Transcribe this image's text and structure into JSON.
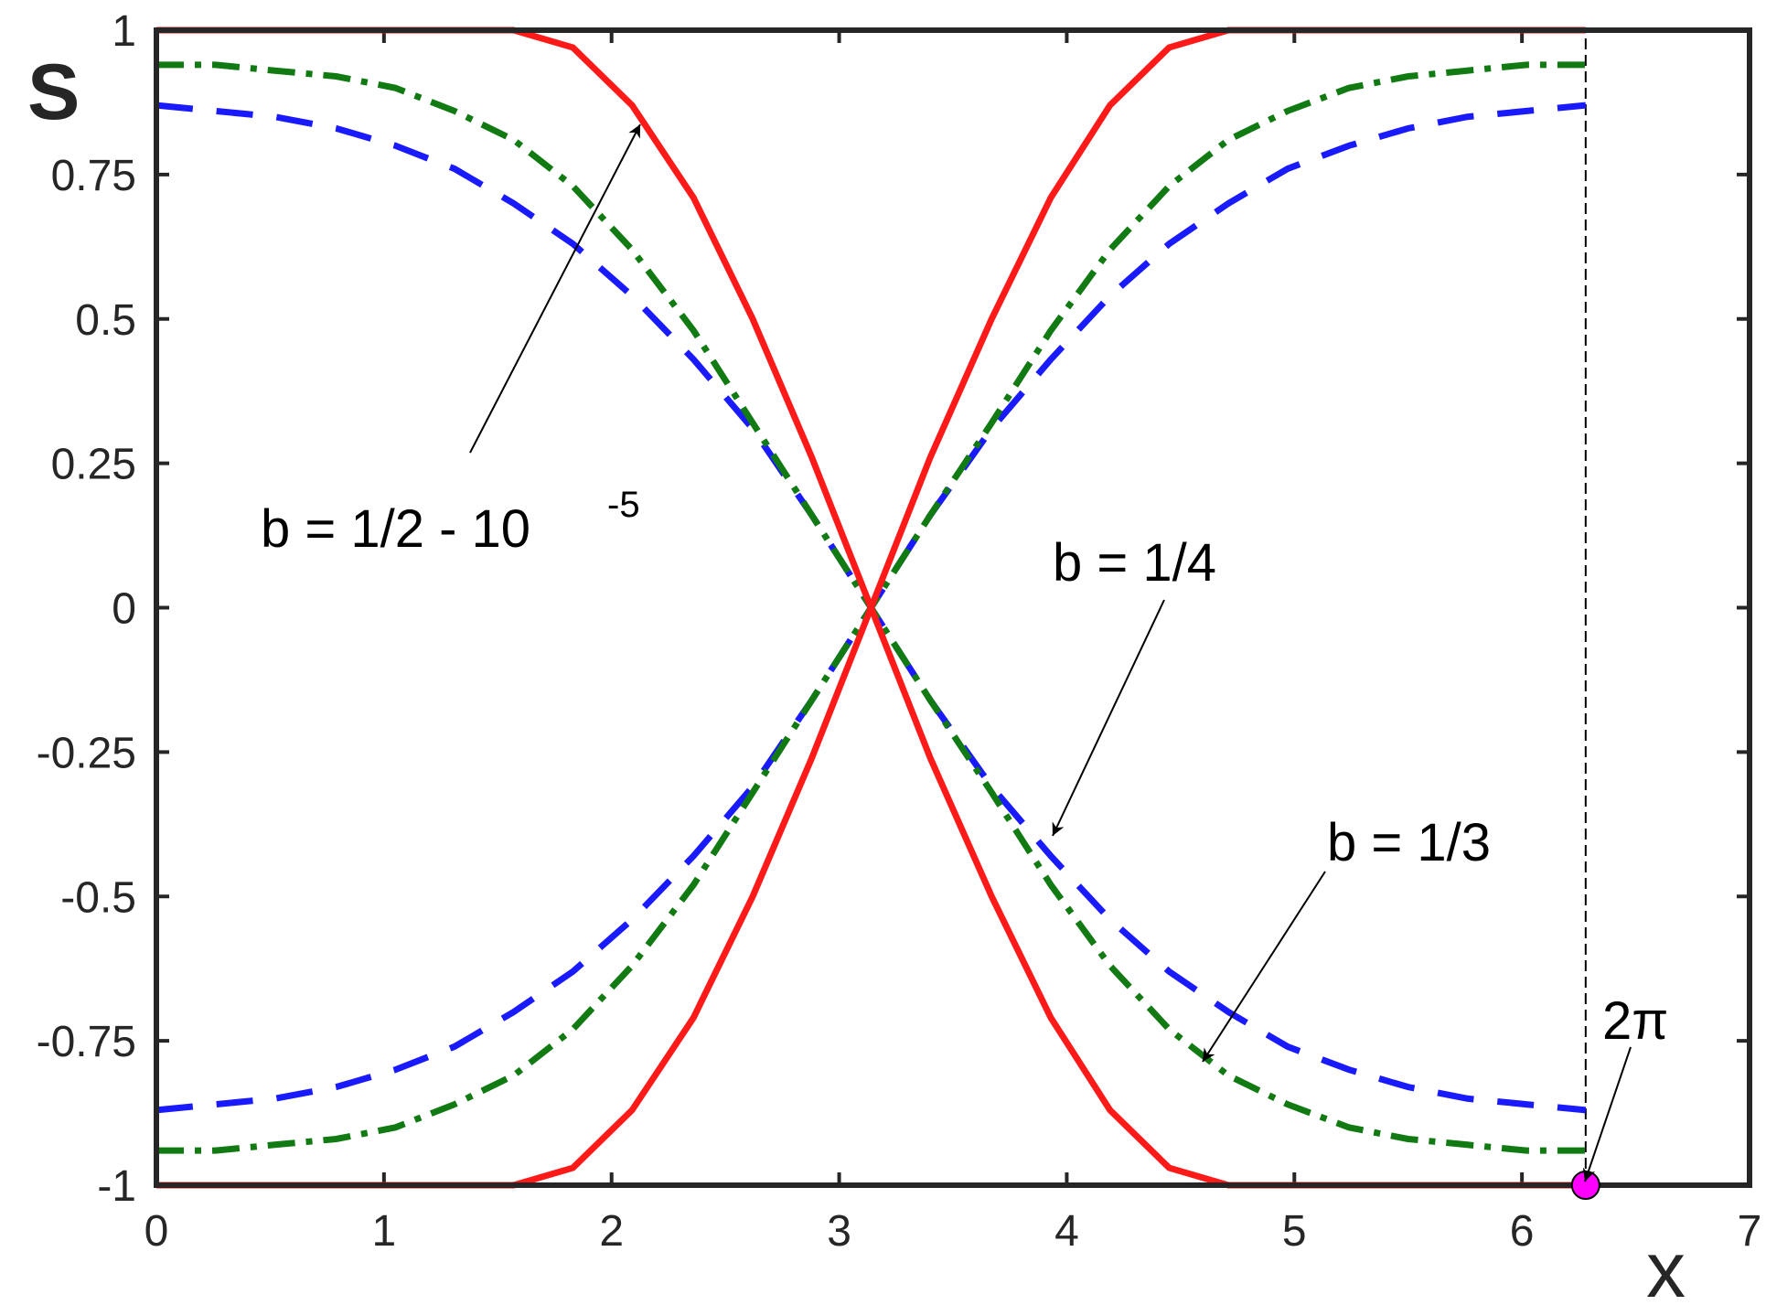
{
  "chart_data": {
    "type": "line",
    "xlabel": "x",
    "ylabel": "S",
    "x": [
      0,
      0.26,
      0.52,
      0.79,
      1.05,
      1.31,
      1.57,
      1.83,
      2.09,
      2.36,
      2.62,
      2.88,
      3.14,
      3.4,
      3.67,
      3.93,
      4.19,
      4.45,
      4.71,
      4.97,
      5.24,
      5.5,
      5.76,
      6.02,
      6.28
    ],
    "series": [
      {
        "color": "#1a1aff",
        "style": "dashed",
        "values": [
          0.87,
          0.86,
          0.85,
          0.83,
          0.8,
          0.76,
          0.7,
          0.63,
          0.54,
          0.43,
          0.31,
          0.16,
          0,
          -0.16,
          -0.31,
          -0.43,
          -0.54,
          -0.63,
          -0.7,
          -0.76,
          -0.8,
          -0.83,
          -0.85,
          -0.86,
          -0.87
        ]
      },
      {
        "color": "#1a1aff",
        "style": "dashed",
        "values": [
          -0.87,
          -0.86,
          -0.85,
          -0.83,
          -0.8,
          -0.76,
          -0.7,
          -0.63,
          -0.54,
          -0.43,
          -0.31,
          -0.16,
          0,
          0.16,
          0.31,
          0.43,
          0.54,
          0.63,
          0.7,
          0.76,
          0.8,
          0.83,
          0.85,
          0.86,
          0.87
        ]
      },
      {
        "color": "#127a12",
        "style": "dashdot",
        "values": [
          0.94,
          0.94,
          0.93,
          0.92,
          0.9,
          0.86,
          0.81,
          0.73,
          0.62,
          0.48,
          0.32,
          0.16,
          0,
          -0.16,
          -0.32,
          -0.48,
          -0.62,
          -0.73,
          -0.81,
          -0.86,
          -0.9,
          -0.92,
          -0.93,
          -0.94,
          -0.94
        ]
      },
      {
        "color": "#127a12",
        "style": "dashdot",
        "values": [
          -0.94,
          -0.94,
          -0.93,
          -0.92,
          -0.9,
          -0.86,
          -0.81,
          -0.73,
          -0.62,
          -0.48,
          -0.32,
          -0.16,
          0,
          0.16,
          0.32,
          0.48,
          0.62,
          0.73,
          0.81,
          0.86,
          0.9,
          0.92,
          0.93,
          0.94,
          0.94
        ]
      },
      {
        "color": "#ff1a1a",
        "style": "solid",
        "values": [
          1,
          1,
          1,
          1,
          1,
          1,
          1,
          0.97,
          0.87,
          0.71,
          0.5,
          0.26,
          0,
          -0.26,
          -0.5,
          -0.71,
          -0.87,
          -0.97,
          -1,
          -1,
          -1,
          -1,
          -1,
          -1,
          -1
        ]
      },
      {
        "color": "#ff1a1a",
        "style": "solid",
        "values": [
          -1,
          -1,
          -1,
          -1,
          -1,
          -1,
          -1,
          -0.97,
          -0.87,
          -0.71,
          -0.5,
          -0.26,
          0,
          0.26,
          0.5,
          0.71,
          0.87,
          0.97,
          1,
          1,
          1,
          1,
          1,
          1,
          1
        ]
      }
    ],
    "vline": 6.28,
    "point": {
      "x": 6.28,
      "y": -1,
      "color": "#ff00ff"
    },
    "annotations": [
      {
        "text": "b = 1/2 - 10",
        "superscript": "-5"
      },
      {
        "text": "b = 1/4"
      },
      {
        "text": "b = 1/3"
      },
      {
        "text": "2π"
      }
    ],
    "xlim": [
      0,
      7
    ],
    "xticks": [
      0,
      1,
      2,
      3,
      4,
      5,
      6,
      7
    ],
    "ylim": [
      -1,
      1
    ],
    "yticks": [
      -1,
      -0.75,
      -0.5,
      -0.25,
      0,
      0.25,
      0.5,
      0.75,
      1
    ]
  }
}
